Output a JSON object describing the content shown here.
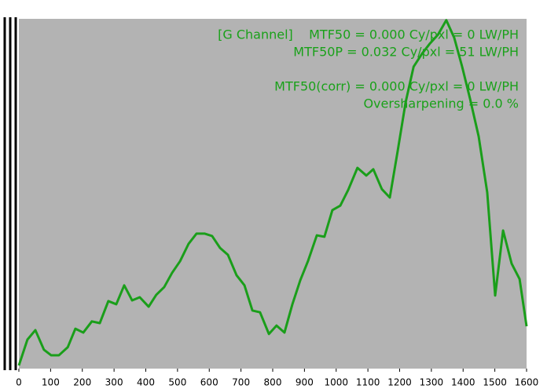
{
  "chart_data": {
    "type": "line",
    "x": [
      0,
      27,
      52,
      79,
      102,
      126,
      154,
      178,
      203,
      230,
      255,
      282,
      307,
      332,
      357,
      381,
      409,
      433,
      458,
      483,
      508,
      535,
      560,
      585,
      609,
      634,
      659,
      686,
      711,
      736,
      760,
      788,
      812,
      837,
      862,
      887,
      911,
      939,
      963,
      988,
      1013,
      1038,
      1067,
      1095,
      1117,
      1144,
      1169,
      1194,
      1219,
      1244,
      1271,
      1296,
      1321,
      1347,
      1372,
      1397,
      1422,
      1449,
      1476,
      1501,
      1526,
      1553,
      1578,
      1600
    ],
    "series": [
      {
        "color": "#1a9e1a",
        "values": [
          0.009,
          0.083,
          0.11,
          0.054,
          0.038,
          0.038,
          0.061,
          0.114,
          0.103,
          0.135,
          0.13,
          0.193,
          0.184,
          0.238,
          0.195,
          0.204,
          0.177,
          0.211,
          0.233,
          0.274,
          0.307,
          0.357,
          0.386,
          0.386,
          0.379,
          0.345,
          0.325,
          0.267,
          0.238,
          0.166,
          0.161,
          0.099,
          0.123,
          0.103,
          0.184,
          0.253,
          0.307,
          0.381,
          0.377,
          0.453,
          0.466,
          0.511,
          0.574,
          0.552,
          0.57,
          0.513,
          0.489,
          0.623,
          0.762,
          0.863,
          0.901,
          0.93,
          0.955,
          0.996,
          0.946,
          0.863,
          0.771,
          0.664,
          0.504,
          0.209,
          0.395,
          0.3,
          0.256,
          0.121
        ]
      }
    ],
    "xlim": [
      0,
      1600
    ],
    "xticks": [
      0,
      100,
      200,
      300,
      400,
      500,
      600,
      700,
      800,
      900,
      1000,
      1100,
      1200,
      1300,
      1400,
      1500,
      1600
    ],
    "ylim": [
      0,
      1
    ],
    "annotations": [
      "[G Channel]    MTF50 = 0.000 Cy/pxl = 0 LW/PH",
      "MTF50P = 0.032 Cy/pxl = 51 LW/PH",
      "MTF50(corr) = 0.000 Cy/pxl = 0 LW/PH",
      "Oversharpening = 0.0 %"
    ],
    "annotation_color": "#1aa11a"
  }
}
